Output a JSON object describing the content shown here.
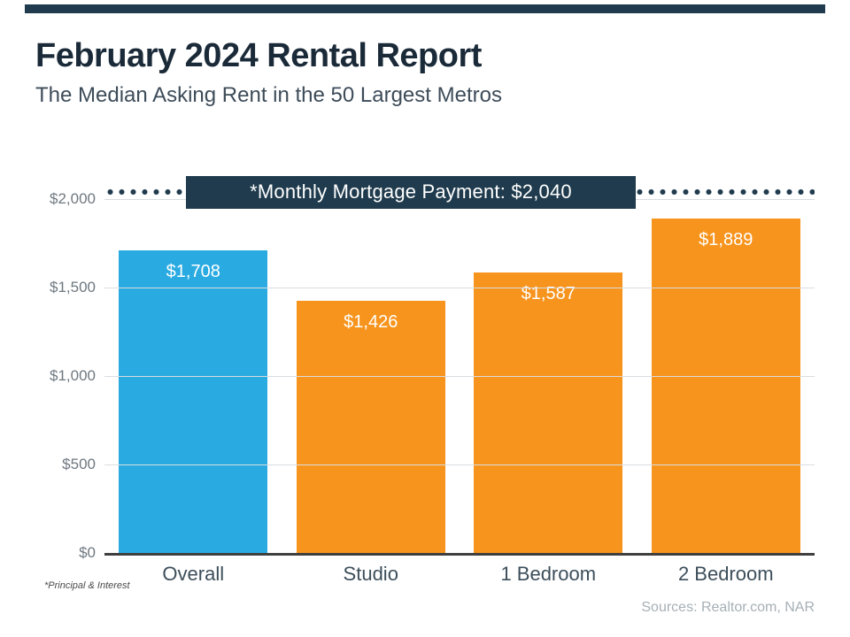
{
  "header": {
    "title": "February 2024 Rental Report",
    "subtitle": "The Median Asking Rent in the 50 Largest Metros"
  },
  "colors": {
    "navy": "#1f3b4d",
    "blue": "#29abe2",
    "orange": "#f7941d"
  },
  "chart_data": {
    "type": "bar",
    "title": "February 2024 Rental Report",
    "subtitle": "The Median Asking Rent in the 50 Largest Metros",
    "categories": [
      "Overall",
      "Studio",
      "1 Bedroom",
      "2 Bedroom"
    ],
    "values": [
      1708,
      1426,
      1587,
      1889
    ],
    "value_labels": [
      "$1,708",
      "$1,426",
      "$1,587",
      "$1,889"
    ],
    "bar_colors": [
      "#29abe2",
      "#f7941d",
      "#f7941d",
      "#f7941d"
    ],
    "xlabel": "",
    "ylabel": "",
    "ylim": [
      0,
      2150
    ],
    "yticks": [
      0,
      500,
      1000,
      1500,
      2000
    ],
    "ytick_labels": [
      "$0",
      "$500",
      "$1,000",
      "$1,500",
      "$2,000"
    ],
    "grid": "horizontal",
    "legend": "none",
    "reference_line": {
      "value": 2040,
      "style": "dotted",
      "label": "*Monthly Mortgage Payment: $2,040"
    }
  },
  "footnote": "*Principal & Interest",
  "sources": "Sources: Realtor.com,  NAR"
}
